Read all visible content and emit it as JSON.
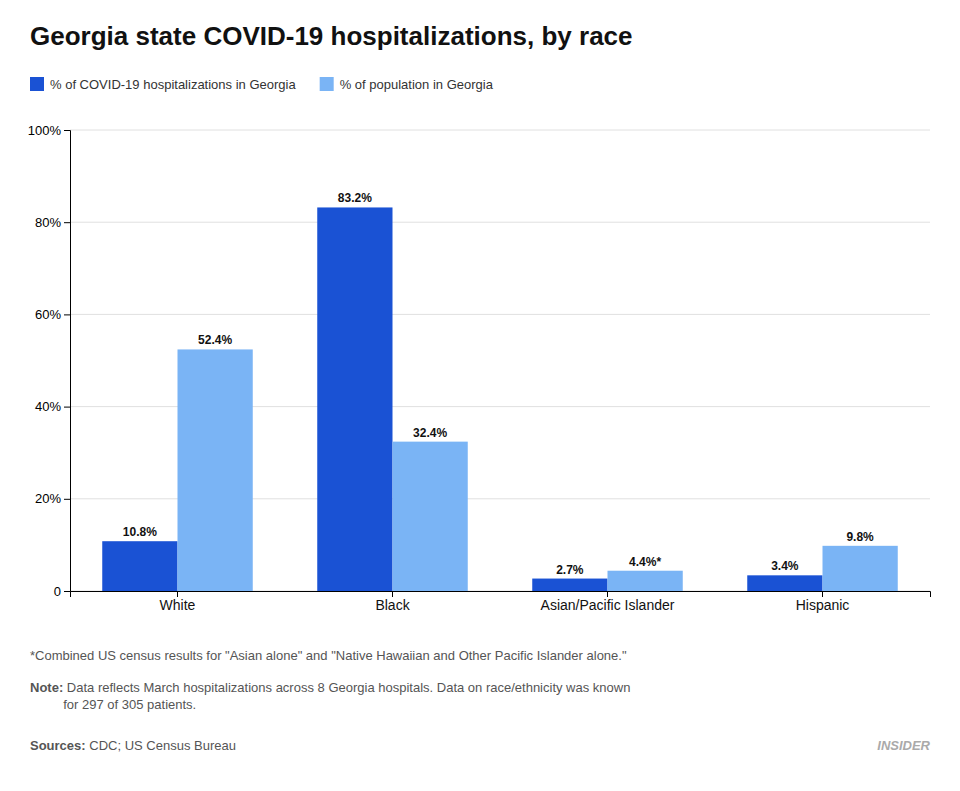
{
  "chart_data": {
    "type": "bar",
    "title": "Georgia state COVID-19 hospitalizations, by race",
    "categories": [
      "White",
      "Black",
      "Asian/Pacific Islander",
      "Hispanic"
    ],
    "series": [
      {
        "name": "% of COVID-19 hospitalizations in Georgia",
        "color": "#1a52d4",
        "values": [
          10.8,
          83.2,
          2.7,
          3.4
        ],
        "value_labels": [
          "10.8%",
          "83.2%",
          "2.7%",
          "3.4%"
        ]
      },
      {
        "name": "% of population in Georgia",
        "color": "#7ab4f5",
        "values": [
          52.4,
          32.4,
          4.4,
          9.8
        ],
        "value_labels": [
          "52.4%",
          "32.4%",
          "4.4%*",
          "9.8%"
        ]
      }
    ],
    "ylim": [
      0,
      100
    ],
    "yticks": [
      0,
      {
        "value": 20,
        "label": "20%"
      },
      {
        "value": 40,
        "label": "40%"
      },
      {
        "value": 60,
        "label": "60%"
      },
      {
        "value": 80,
        "label": "80%"
      },
      {
        "value": 100,
        "label": "100%"
      }
    ],
    "grid": true,
    "legend": "upper left",
    "data_labels": true,
    "annotations": [
      "*Combined US census results for \"Asian alone\" and \"Native Hawaiian and Other Pacific Islander alone.\"",
      "Note:",
      " Data reflects March hospitalizations across 8 Georgia hospitals. Data on race/ethnicity was known\nfor 297 of 305 patients.",
      "Sources:",
      " CDC; US Census Bureau",
      "INSIDER"
    ]
  }
}
